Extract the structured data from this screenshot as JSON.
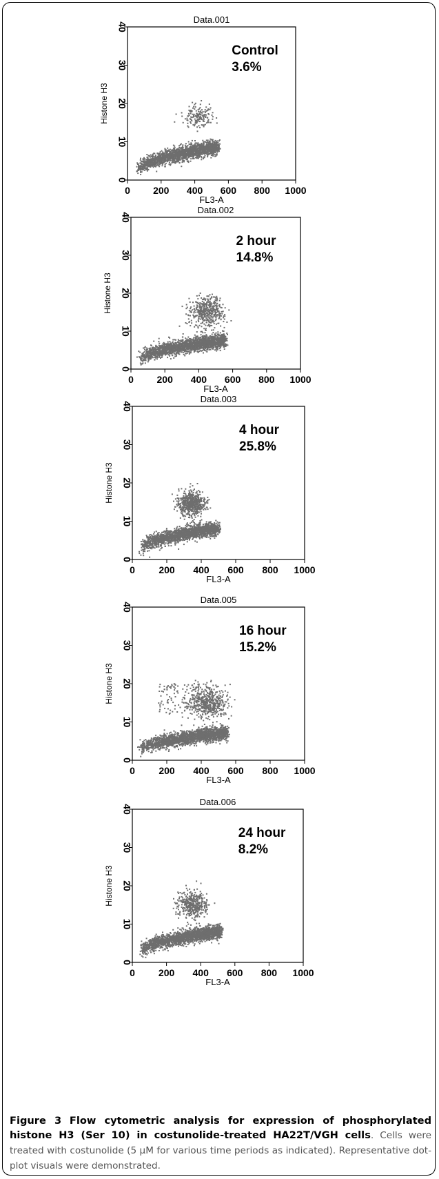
{
  "figure": {
    "caption": {
      "label": "Figure 3",
      "bold_text": "Flow cytometric analysis for expression of phosphorylated histone H3 (Ser 10) in costunolide-treated HA22T/VGH cells",
      "text": ". Cells were treated with costunolide (5 μM for various time periods as indicated). Representative dot-plot visuals were demonstrated."
    }
  },
  "chart_data": [
    {
      "type": "scatter",
      "title": "Data.001",
      "annotation": "Control",
      "percent": "3.6%",
      "xlabel": "FL3-A",
      "ylabel": "Histone H3",
      "xlim": [
        0,
        1000
      ],
      "ylim": [
        0,
        40
      ],
      "xticks": [
        "0",
        "200",
        "400",
        "600",
        "800",
        "1000"
      ],
      "yticks": [
        "0",
        "10",
        "20",
        "30",
        "40"
      ],
      "color": "#6e6e6e",
      "populations": [
        {
          "type": "band",
          "x": [
            60,
            540
          ],
          "y": [
            1.5,
            10.5
          ],
          "n": 2000
        },
        {
          "type": "cluster",
          "cx": 420,
          "cy": 16.5,
          "sx": 45,
          "sy": 1.5,
          "n": 160
        }
      ]
    },
    {
      "type": "scatter",
      "title": "Data.002",
      "annotation": "2 hour",
      "percent": "14.8%",
      "xlabel": "FL3-A",
      "ylabel": "Histone H3",
      "xlim": [
        0,
        1000
      ],
      "ylim": [
        0,
        40
      ],
      "xticks": [
        "0",
        "200",
        "400",
        "600",
        "800",
        "1000"
      ],
      "yticks": [
        "0",
        "10",
        "20",
        "30",
        "40"
      ],
      "color": "#6e6e6e",
      "populations": [
        {
          "type": "band",
          "x": [
            50,
            560
          ],
          "y": [
            1.5,
            9.5
          ],
          "n": 2000
        },
        {
          "type": "cluster",
          "cx": 450,
          "cy": 15,
          "sx": 50,
          "sy": 2,
          "n": 450
        }
      ]
    },
    {
      "type": "scatter",
      "title": "Data.003",
      "annotation": "4 hour",
      "percent": "25.8%",
      "xlabel": "FL3-A",
      "ylabel": "Histone H3",
      "xlim": [
        0,
        1000
      ],
      "ylim": [
        0,
        40
      ],
      "xticks": [
        "0",
        "200",
        "400",
        "600",
        "800",
        "1000"
      ],
      "yticks": [
        "0",
        "10",
        "20",
        "30",
        "40"
      ],
      "color": "#6e6e6e",
      "populations": [
        {
          "type": "band",
          "x": [
            50,
            500
          ],
          "y": [
            2,
            10
          ],
          "n": 1800
        },
        {
          "type": "cluster",
          "cx": 340,
          "cy": 14.5,
          "sx": 40,
          "sy": 1.6,
          "n": 600
        }
      ]
    },
    {
      "type": "scatter",
      "title": "Data.005",
      "annotation": "16 hour",
      "percent": "15.2%",
      "xlabel": "FL3-A",
      "ylabel": "Histone H3",
      "xlim": [
        0,
        1000
      ],
      "ylim": [
        0,
        40
      ],
      "xticks": [
        "0",
        "200",
        "400",
        "600",
        "800",
        "1000"
      ],
      "yticks": [
        "0",
        "10",
        "20",
        "30",
        "40"
      ],
      "color": "#6e6e6e",
      "populations": [
        {
          "type": "band",
          "x": [
            50,
            550
          ],
          "y": [
            2,
            9
          ],
          "n": 2000
        },
        {
          "type": "cluster",
          "cx": 440,
          "cy": 15,
          "sx": 55,
          "sy": 2,
          "n": 500
        },
        {
          "type": "uniform",
          "x": [
            150,
            400
          ],
          "y": [
            12,
            20
          ],
          "n": 120
        }
      ]
    },
    {
      "type": "scatter",
      "title": "Data.006",
      "annotation": "24 hour",
      "percent": "8.2%",
      "xlabel": "FL3-A",
      "ylabel": "Histone H3",
      "xlim": [
        0,
        1000
      ],
      "ylim": [
        0,
        40
      ],
      "xticks": [
        "0",
        "200",
        "400",
        "600",
        "800",
        "1000"
      ],
      "yticks": [
        "0",
        "10",
        "20",
        "30",
        "40"
      ],
      "color": "#6e6e6e",
      "populations": [
        {
          "type": "band",
          "x": [
            50,
            520
          ],
          "y": [
            2,
            10
          ],
          "n": 2000
        },
        {
          "type": "cluster",
          "cx": 350,
          "cy": 15,
          "sx": 45,
          "sy": 1.8,
          "n": 400
        }
      ]
    }
  ]
}
